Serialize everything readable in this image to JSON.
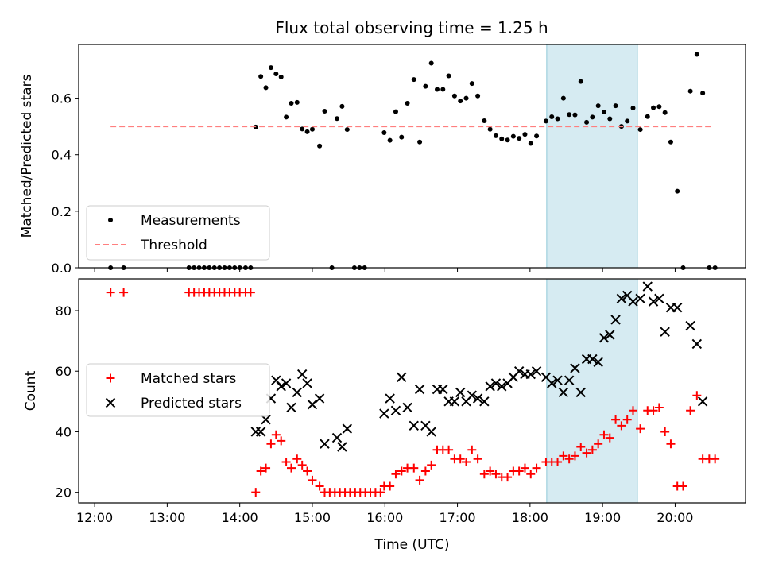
{
  "title": "Flux total observing time = 1.25 h",
  "chart_data": [
    {
      "type": "scatter",
      "ylabel": "Matched/Predicted stars",
      "xlabel": "",
      "xlim": [
        11.78,
        20.97
      ],
      "ylim": [
        0,
        0.79
      ],
      "yticks": [
        0.0,
        0.2,
        0.4,
        0.6
      ],
      "ytick_labels": [
        "0.0",
        "0.2",
        "0.4",
        "0.6"
      ],
      "x_tick_labels_shown": false,
      "highlight_span": [
        18.23,
        19.48
      ],
      "legend_position": "lower-left",
      "series": [
        {
          "name": "Measurements",
          "marker": "dot",
          "color": "#000000",
          "points": [
            [
              12.22,
              0
            ],
            [
              12.4,
              0
            ],
            [
              13.3,
              0
            ],
            [
              13.37,
              0
            ],
            [
              13.44,
              0
            ],
            [
              13.51,
              0
            ],
            [
              13.58,
              0
            ],
            [
              13.65,
              0
            ],
            [
              13.72,
              0
            ],
            [
              13.79,
              0
            ],
            [
              13.86,
              0
            ],
            [
              13.93,
              0
            ],
            [
              14.0,
              0
            ],
            [
              14.08,
              0
            ],
            [
              14.15,
              0
            ],
            [
              14.22,
              0.498
            ],
            [
              14.29,
              0.677
            ],
            [
              14.36,
              0.637
            ],
            [
              14.43,
              0.708
            ],
            [
              14.5,
              0.686
            ],
            [
              14.57,
              0.675
            ],
            [
              14.64,
              0.533
            ],
            [
              14.71,
              0.582
            ],
            [
              14.79,
              0.585
            ],
            [
              14.86,
              0.491
            ],
            [
              14.93,
              0.481
            ],
            [
              15.0,
              0.49
            ],
            [
              15.1,
              0.431
            ],
            [
              15.17,
              0.554
            ],
            [
              15.27,
              0.0
            ],
            [
              15.34,
              0.528
            ],
            [
              15.41,
              0.571
            ],
            [
              15.48,
              0.489
            ],
            [
              15.58,
              0.0
            ],
            [
              15.65,
              0.0
            ],
            [
              15.72,
              0.0
            ],
            [
              15.99,
              0.478
            ],
            [
              16.07,
              0.451
            ],
            [
              16.15,
              0.552
            ],
            [
              16.23,
              0.462
            ],
            [
              16.31,
              0.582
            ],
            [
              16.4,
              0.666
            ],
            [
              16.48,
              0.445
            ],
            [
              16.56,
              0.642
            ],
            [
              16.64,
              0.724
            ],
            [
              16.72,
              0.631
            ],
            [
              16.8,
              0.631
            ],
            [
              16.88,
              0.679
            ],
            [
              16.96,
              0.608
            ],
            [
              17.04,
              0.59
            ],
            [
              17.12,
              0.6
            ],
            [
              17.2,
              0.652
            ],
            [
              17.28,
              0.608
            ],
            [
              17.37,
              0.52
            ],
            [
              17.45,
              0.49
            ],
            [
              17.53,
              0.467
            ],
            [
              17.61,
              0.456
            ],
            [
              17.69,
              0.452
            ],
            [
              17.77,
              0.465
            ],
            [
              17.85,
              0.458
            ],
            [
              17.93,
              0.472
            ],
            [
              18.01,
              0.44
            ],
            [
              18.09,
              0.466
            ],
            [
              18.22,
              0.519
            ],
            [
              18.3,
              0.534
            ],
            [
              18.38,
              0.527
            ],
            [
              18.46,
              0.6
            ],
            [
              18.54,
              0.542
            ],
            [
              18.62,
              0.541
            ],
            [
              18.7,
              0.659
            ],
            [
              18.78,
              0.515
            ],
            [
              18.86,
              0.533
            ],
            [
              18.94,
              0.573
            ],
            [
              19.02,
              0.551
            ],
            [
              19.1,
              0.527
            ],
            [
              19.18,
              0.573
            ],
            [
              19.26,
              0.5
            ],
            [
              19.34,
              0.519
            ],
            [
              19.42,
              0.565
            ],
            [
              19.52,
              0.489
            ],
            [
              19.62,
              0.535
            ],
            [
              19.7,
              0.566
            ],
            [
              19.78,
              0.57
            ],
            [
              19.86,
              0.549
            ],
            [
              19.94,
              0.445
            ],
            [
              20.03,
              0.271
            ],
            [
              20.11,
              0.0
            ],
            [
              20.21,
              0.625
            ],
            [
              20.3,
              0.755
            ],
            [
              20.38,
              0.618
            ],
            [
              20.47,
              0.0
            ],
            [
              20.55,
              0.0
            ]
          ]
        },
        {
          "name": "Threshold",
          "style": "dashed",
          "color": "#ff7f7f",
          "x": [
            12.22,
            20.52
          ],
          "y": [
            0.5,
            0.5
          ]
        }
      ]
    },
    {
      "type": "scatter",
      "ylabel": "Count",
      "xlabel": "Time (UTC)",
      "xlim": [
        11.78,
        20.97
      ],
      "ylim": [
        16.5,
        90.5
      ],
      "yticks": [
        20,
        40,
        60,
        80
      ],
      "ytick_labels": [
        "20",
        "40",
        "60",
        "80"
      ],
      "xticks": [
        12,
        13,
        14,
        15,
        16,
        17,
        18,
        19,
        20
      ],
      "xtick_labels": [
        "12:00",
        "13:00",
        "14:00",
        "15:00",
        "16:00",
        "17:00",
        "18:00",
        "19:00",
        "20:00"
      ],
      "highlight_span": [
        18.23,
        19.48
      ],
      "legend_position": "center-left",
      "series": [
        {
          "name": "Matched stars",
          "marker": "plus",
          "color": "#ff0000",
          "points": [
            [
              12.22,
              86
            ],
            [
              12.4,
              86
            ],
            [
              13.3,
              86
            ],
            [
              13.37,
              86
            ],
            [
              13.44,
              86
            ],
            [
              13.51,
              86
            ],
            [
              13.58,
              86
            ],
            [
              13.65,
              86
            ],
            [
              13.72,
              86
            ],
            [
              13.79,
              86
            ],
            [
              13.86,
              86
            ],
            [
              13.93,
              86
            ],
            [
              14.0,
              86
            ],
            [
              14.08,
              86
            ],
            [
              14.15,
              86
            ],
            [
              14.22,
              20
            ],
            [
              14.29,
              27
            ],
            [
              14.36,
              28
            ],
            [
              14.43,
              36
            ],
            [
              14.5,
              39
            ],
            [
              14.57,
              37
            ],
            [
              14.64,
              30
            ],
            [
              14.71,
              28
            ],
            [
              14.79,
              31
            ],
            [
              14.86,
              29
            ],
            [
              14.93,
              27
            ],
            [
              15.0,
              24
            ],
            [
              15.1,
              22
            ],
            [
              15.17,
              20
            ],
            [
              15.24,
              20
            ],
            [
              15.31,
              20
            ],
            [
              15.38,
              20
            ],
            [
              15.45,
              20
            ],
            [
              15.52,
              20
            ],
            [
              15.59,
              20
            ],
            [
              15.66,
              20
            ],
            [
              15.73,
              20
            ],
            [
              15.8,
              20
            ],
            [
              15.87,
              20
            ],
            [
              15.94,
              20
            ],
            [
              15.99,
              22
            ],
            [
              16.07,
              22
            ],
            [
              16.15,
              26
            ],
            [
              16.23,
              27
            ],
            [
              16.31,
              28
            ],
            [
              16.4,
              28
            ],
            [
              16.48,
              24
            ],
            [
              16.56,
              27
            ],
            [
              16.64,
              29
            ],
            [
              16.72,
              34
            ],
            [
              16.8,
              34
            ],
            [
              16.88,
              34
            ],
            [
              16.96,
              31
            ],
            [
              17.04,
              31
            ],
            [
              17.12,
              30
            ],
            [
              17.2,
              34
            ],
            [
              17.28,
              31
            ],
            [
              17.37,
              26
            ],
            [
              17.45,
              27
            ],
            [
              17.53,
              26
            ],
            [
              17.61,
              25
            ],
            [
              17.69,
              25
            ],
            [
              17.77,
              27
            ],
            [
              17.85,
              27
            ],
            [
              17.93,
              28
            ],
            [
              18.01,
              26
            ],
            [
              18.09,
              28
            ],
            [
              18.22,
              30
            ],
            [
              18.3,
              30
            ],
            [
              18.38,
              30
            ],
            [
              18.46,
              32
            ],
            [
              18.54,
              31
            ],
            [
              18.62,
              32
            ],
            [
              18.7,
              35
            ],
            [
              18.78,
              33
            ],
            [
              18.86,
              34
            ],
            [
              18.94,
              36
            ],
            [
              19.02,
              39
            ],
            [
              19.1,
              38
            ],
            [
              19.18,
              44
            ],
            [
              19.26,
              42
            ],
            [
              19.34,
              44
            ],
            [
              19.42,
              47
            ],
            [
              19.52,
              41
            ],
            [
              19.62,
              47
            ],
            [
              19.7,
              47
            ],
            [
              19.78,
              48
            ],
            [
              19.86,
              40
            ],
            [
              19.94,
              36
            ],
            [
              20.03,
              22
            ],
            [
              20.11,
              22
            ],
            [
              20.21,
              47
            ],
            [
              20.3,
              52
            ],
            [
              20.38,
              31
            ],
            [
              20.47,
              31
            ],
            [
              20.55,
              31
            ]
          ]
        },
        {
          "name": "Predicted stars",
          "marker": "x",
          "color": "#000000",
          "points": [
            [
              14.22,
              40
            ],
            [
              14.29,
              40
            ],
            [
              14.36,
              44
            ],
            [
              14.43,
              51
            ],
            [
              14.5,
              57
            ],
            [
              14.57,
              55
            ],
            [
              14.64,
              56
            ],
            [
              14.71,
              48
            ],
            [
              14.79,
              53
            ],
            [
              14.86,
              59
            ],
            [
              14.93,
              56
            ],
            [
              15.0,
              49
            ],
            [
              15.1,
              51
            ],
            [
              15.17,
              36
            ],
            [
              15.34,
              38
            ],
            [
              15.41,
              35
            ],
            [
              15.48,
              41
            ],
            [
              15.99,
              46
            ],
            [
              16.07,
              51
            ],
            [
              16.15,
              47
            ],
            [
              16.23,
              58
            ],
            [
              16.31,
              48
            ],
            [
              16.4,
              42
            ],
            [
              16.48,
              54
            ],
            [
              16.56,
              42
            ],
            [
              16.64,
              40
            ],
            [
              16.72,
              54
            ],
            [
              16.8,
              54
            ],
            [
              16.88,
              50
            ],
            [
              16.96,
              50
            ],
            [
              17.04,
              53
            ],
            [
              17.12,
              50
            ],
            [
              17.2,
              52
            ],
            [
              17.28,
              51
            ],
            [
              17.37,
              50
            ],
            [
              17.45,
              55
            ],
            [
              17.53,
              56
            ],
            [
              17.61,
              55
            ],
            [
              17.69,
              56
            ],
            [
              17.77,
              58
            ],
            [
              17.85,
              60
            ],
            [
              17.93,
              59
            ],
            [
              18.01,
              59
            ],
            [
              18.09,
              60
            ],
            [
              18.22,
              58
            ],
            [
              18.3,
              56
            ],
            [
              18.38,
              57
            ],
            [
              18.46,
              53
            ],
            [
              18.54,
              57
            ],
            [
              18.62,
              61
            ],
            [
              18.7,
              53
            ],
            [
              18.78,
              64
            ],
            [
              18.86,
              64
            ],
            [
              18.94,
              63
            ],
            [
              19.02,
              71
            ],
            [
              19.1,
              72
            ],
            [
              19.18,
              77
            ],
            [
              19.26,
              84
            ],
            [
              19.34,
              85
            ],
            [
              19.42,
              83
            ],
            [
              19.52,
              84
            ],
            [
              19.62,
              88
            ],
            [
              19.7,
              83
            ],
            [
              19.78,
              84
            ],
            [
              19.86,
              73
            ],
            [
              19.94,
              81
            ],
            [
              20.03,
              81
            ],
            [
              20.21,
              75
            ],
            [
              20.3,
              69
            ],
            [
              20.38,
              50
            ]
          ]
        }
      ]
    }
  ]
}
